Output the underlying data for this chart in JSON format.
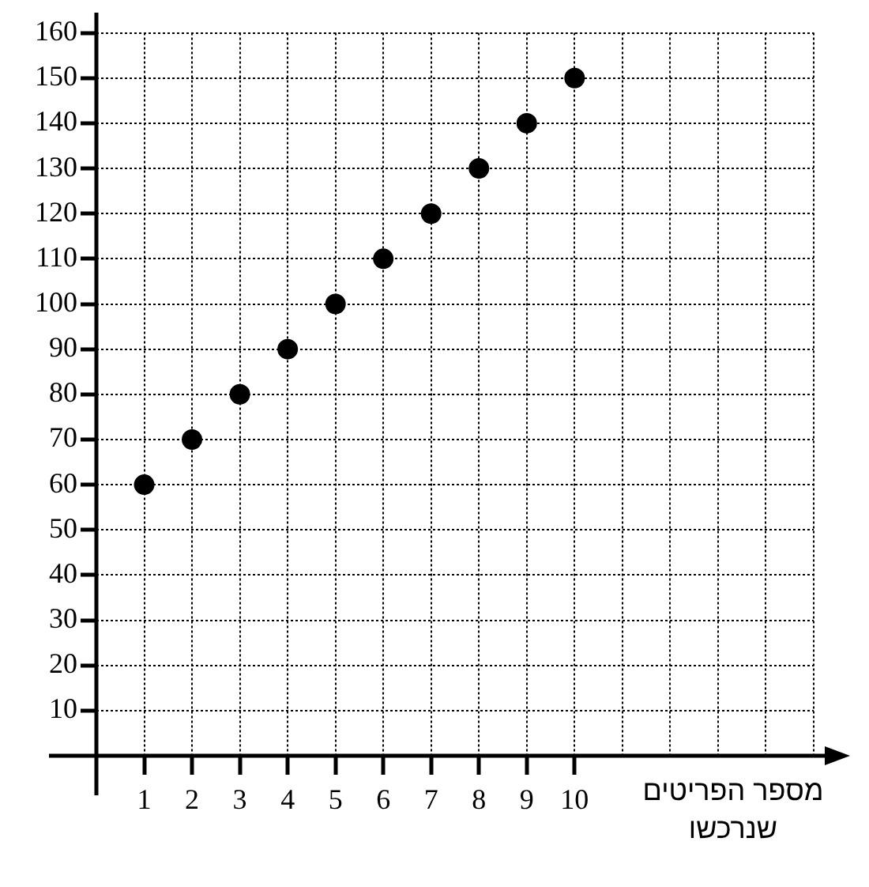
{
  "chart_data": {
    "type": "scatter",
    "xlabel": "מספר הפריטים שנרכשו",
    "x": [
      1,
      2,
      3,
      4,
      5,
      6,
      7,
      8,
      9,
      10
    ],
    "values": [
      60,
      70,
      80,
      90,
      100,
      110,
      120,
      130,
      140,
      150
    ],
    "color": "#000000",
    "marker": "circle",
    "grid": true,
    "xlim": [
      0,
      15
    ],
    "xticks": [
      1,
      2,
      3,
      4,
      5,
      6,
      7,
      8,
      9,
      10,
      {
        "value": 11,
        "label": null
      },
      {
        "value": 12,
        "label": null
      },
      {
        "value": 13,
        "label": null
      },
      {
        "value": 14,
        "label": null
      },
      {
        "value": 15,
        "label": null
      }
    ],
    "ylim": [
      0,
      160
    ],
    "yticks": [
      10,
      20,
      30,
      40,
      50,
      60,
      70,
      80,
      90,
      100,
      110,
      120,
      130,
      140,
      150,
      160
    ]
  }
}
